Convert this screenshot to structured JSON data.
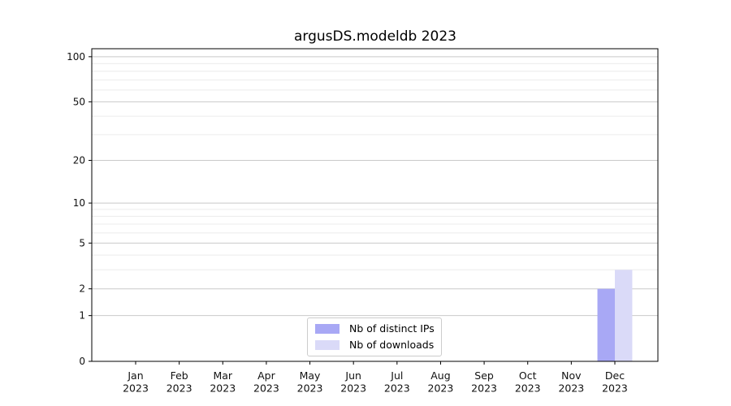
{
  "title": "argusDS.modeldb 2023",
  "chart_data": {
    "type": "bar",
    "title": "argusDS.modeldb 2023",
    "categories": [
      "Jan 2023",
      "Feb 2023",
      "Mar 2023",
      "Apr 2023",
      "May 2023",
      "Jun 2023",
      "Jul 2023",
      "Aug 2023",
      "Sep 2023",
      "Oct 2023",
      "Nov 2023",
      "Dec 2023"
    ],
    "series": [
      {
        "name": "Nb of distinct IPs",
        "color": "#a8a8f5",
        "values": [
          0,
          0,
          0,
          0,
          0,
          0,
          0,
          0,
          0,
          0,
          0,
          2
        ]
      },
      {
        "name": "Nb of downloads",
        "color": "#dadaf8",
        "values": [
          0,
          0,
          0,
          0,
          0,
          0,
          0,
          0,
          0,
          0,
          0,
          3
        ]
      }
    ],
    "xlabel": "",
    "ylabel": "",
    "yscale": "log1p",
    "ylim": [
      0,
      113
    ],
    "yticks": [
      0,
      1,
      2,
      5,
      10,
      20,
      50,
      100
    ],
    "yticks_minor": [
      3,
      4,
      6,
      7,
      8,
      9,
      30,
      40,
      60,
      70,
      80,
      90
    ],
    "grid": "horizontal",
    "legend_position": "lower center"
  },
  "colors": {
    "background": "#ffffff",
    "spine": "#000000",
    "tick_text": "#111111",
    "grid_major": "#c9c9c9",
    "grid_minor": "#ececec",
    "legend_border": "#cccccc"
  }
}
